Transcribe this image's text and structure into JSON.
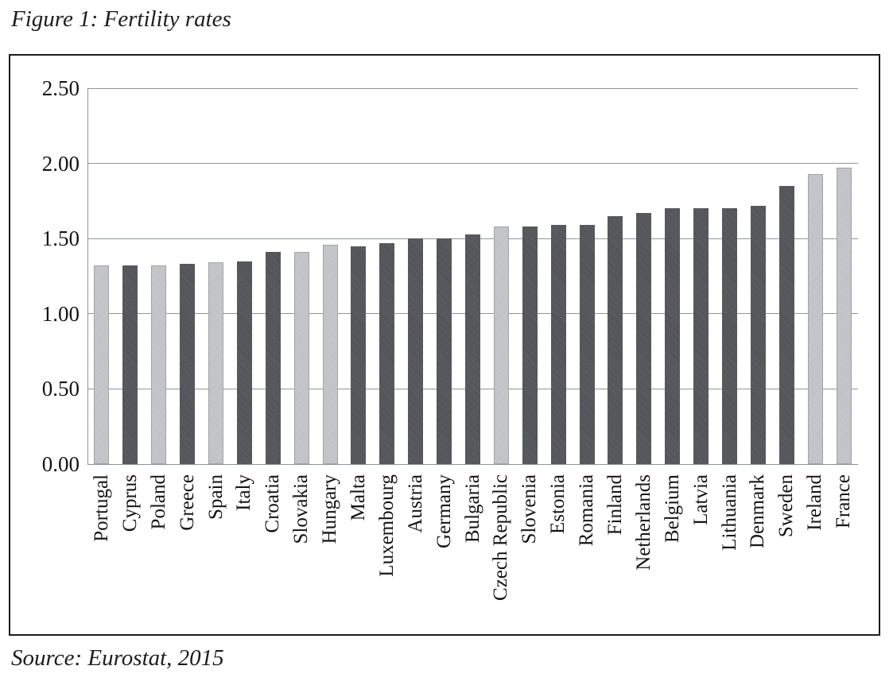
{
  "figure": {
    "title": "Figure 1: Fertility rates",
    "source": "Source: Eurostat, 2015"
  },
  "chart_data": {
    "type": "bar",
    "title": "Figure 1: Fertility rates",
    "source": "Source: Eurostat, 2015",
    "xlabel": "",
    "ylabel": "",
    "ylim": [
      0,
      2.5
    ],
    "yticks": [
      0.0,
      0.5,
      1.0,
      1.5,
      2.0,
      2.5
    ],
    "ytick_labels": [
      "0.00",
      "0.50",
      "1.00",
      "1.50",
      "2.00",
      "2.50"
    ],
    "grid": true,
    "legend": "none",
    "categories": [
      "Portugal",
      "Cyprus",
      "Poland",
      "Greece",
      "Spain",
      "Italy",
      "Croatia",
      "Slovakia",
      "Hungary",
      "Malta",
      "Luxembourg",
      "Austria",
      "Germany",
      "Bulgaria",
      "Czech Republic",
      "Slovenia",
      "Estonia",
      "Romania",
      "Finland",
      "Netherlands",
      "Belgium",
      "Latvia",
      "Lithuania",
      "Denmark",
      "Sweden",
      "Ireland",
      "France"
    ],
    "values": [
      1.32,
      1.32,
      1.32,
      1.33,
      1.34,
      1.35,
      1.41,
      1.41,
      1.46,
      1.45,
      1.47,
      1.5,
      1.5,
      1.53,
      1.58,
      1.58,
      1.59,
      1.59,
      1.65,
      1.67,
      1.7,
      1.7,
      1.7,
      1.72,
      1.85,
      1.93,
      1.97
    ],
    "bar_styles": [
      "light",
      "dark",
      "light",
      "dark",
      "light",
      "dark",
      "dark",
      "light",
      "light",
      "dark",
      "dark",
      "dark",
      "dark",
      "dark",
      "light",
      "dark",
      "dark",
      "dark",
      "dark",
      "dark",
      "dark",
      "dark",
      "dark",
      "dark",
      "dark",
      "light",
      "light"
    ],
    "colors": {
      "dark_bar": "#4b4d52",
      "light_bar": "#c7c9ce",
      "gridline": "#8e988f",
      "axis_line": "#8e988f",
      "frame_border": "#1c1c1e",
      "text": "#141414"
    }
  }
}
